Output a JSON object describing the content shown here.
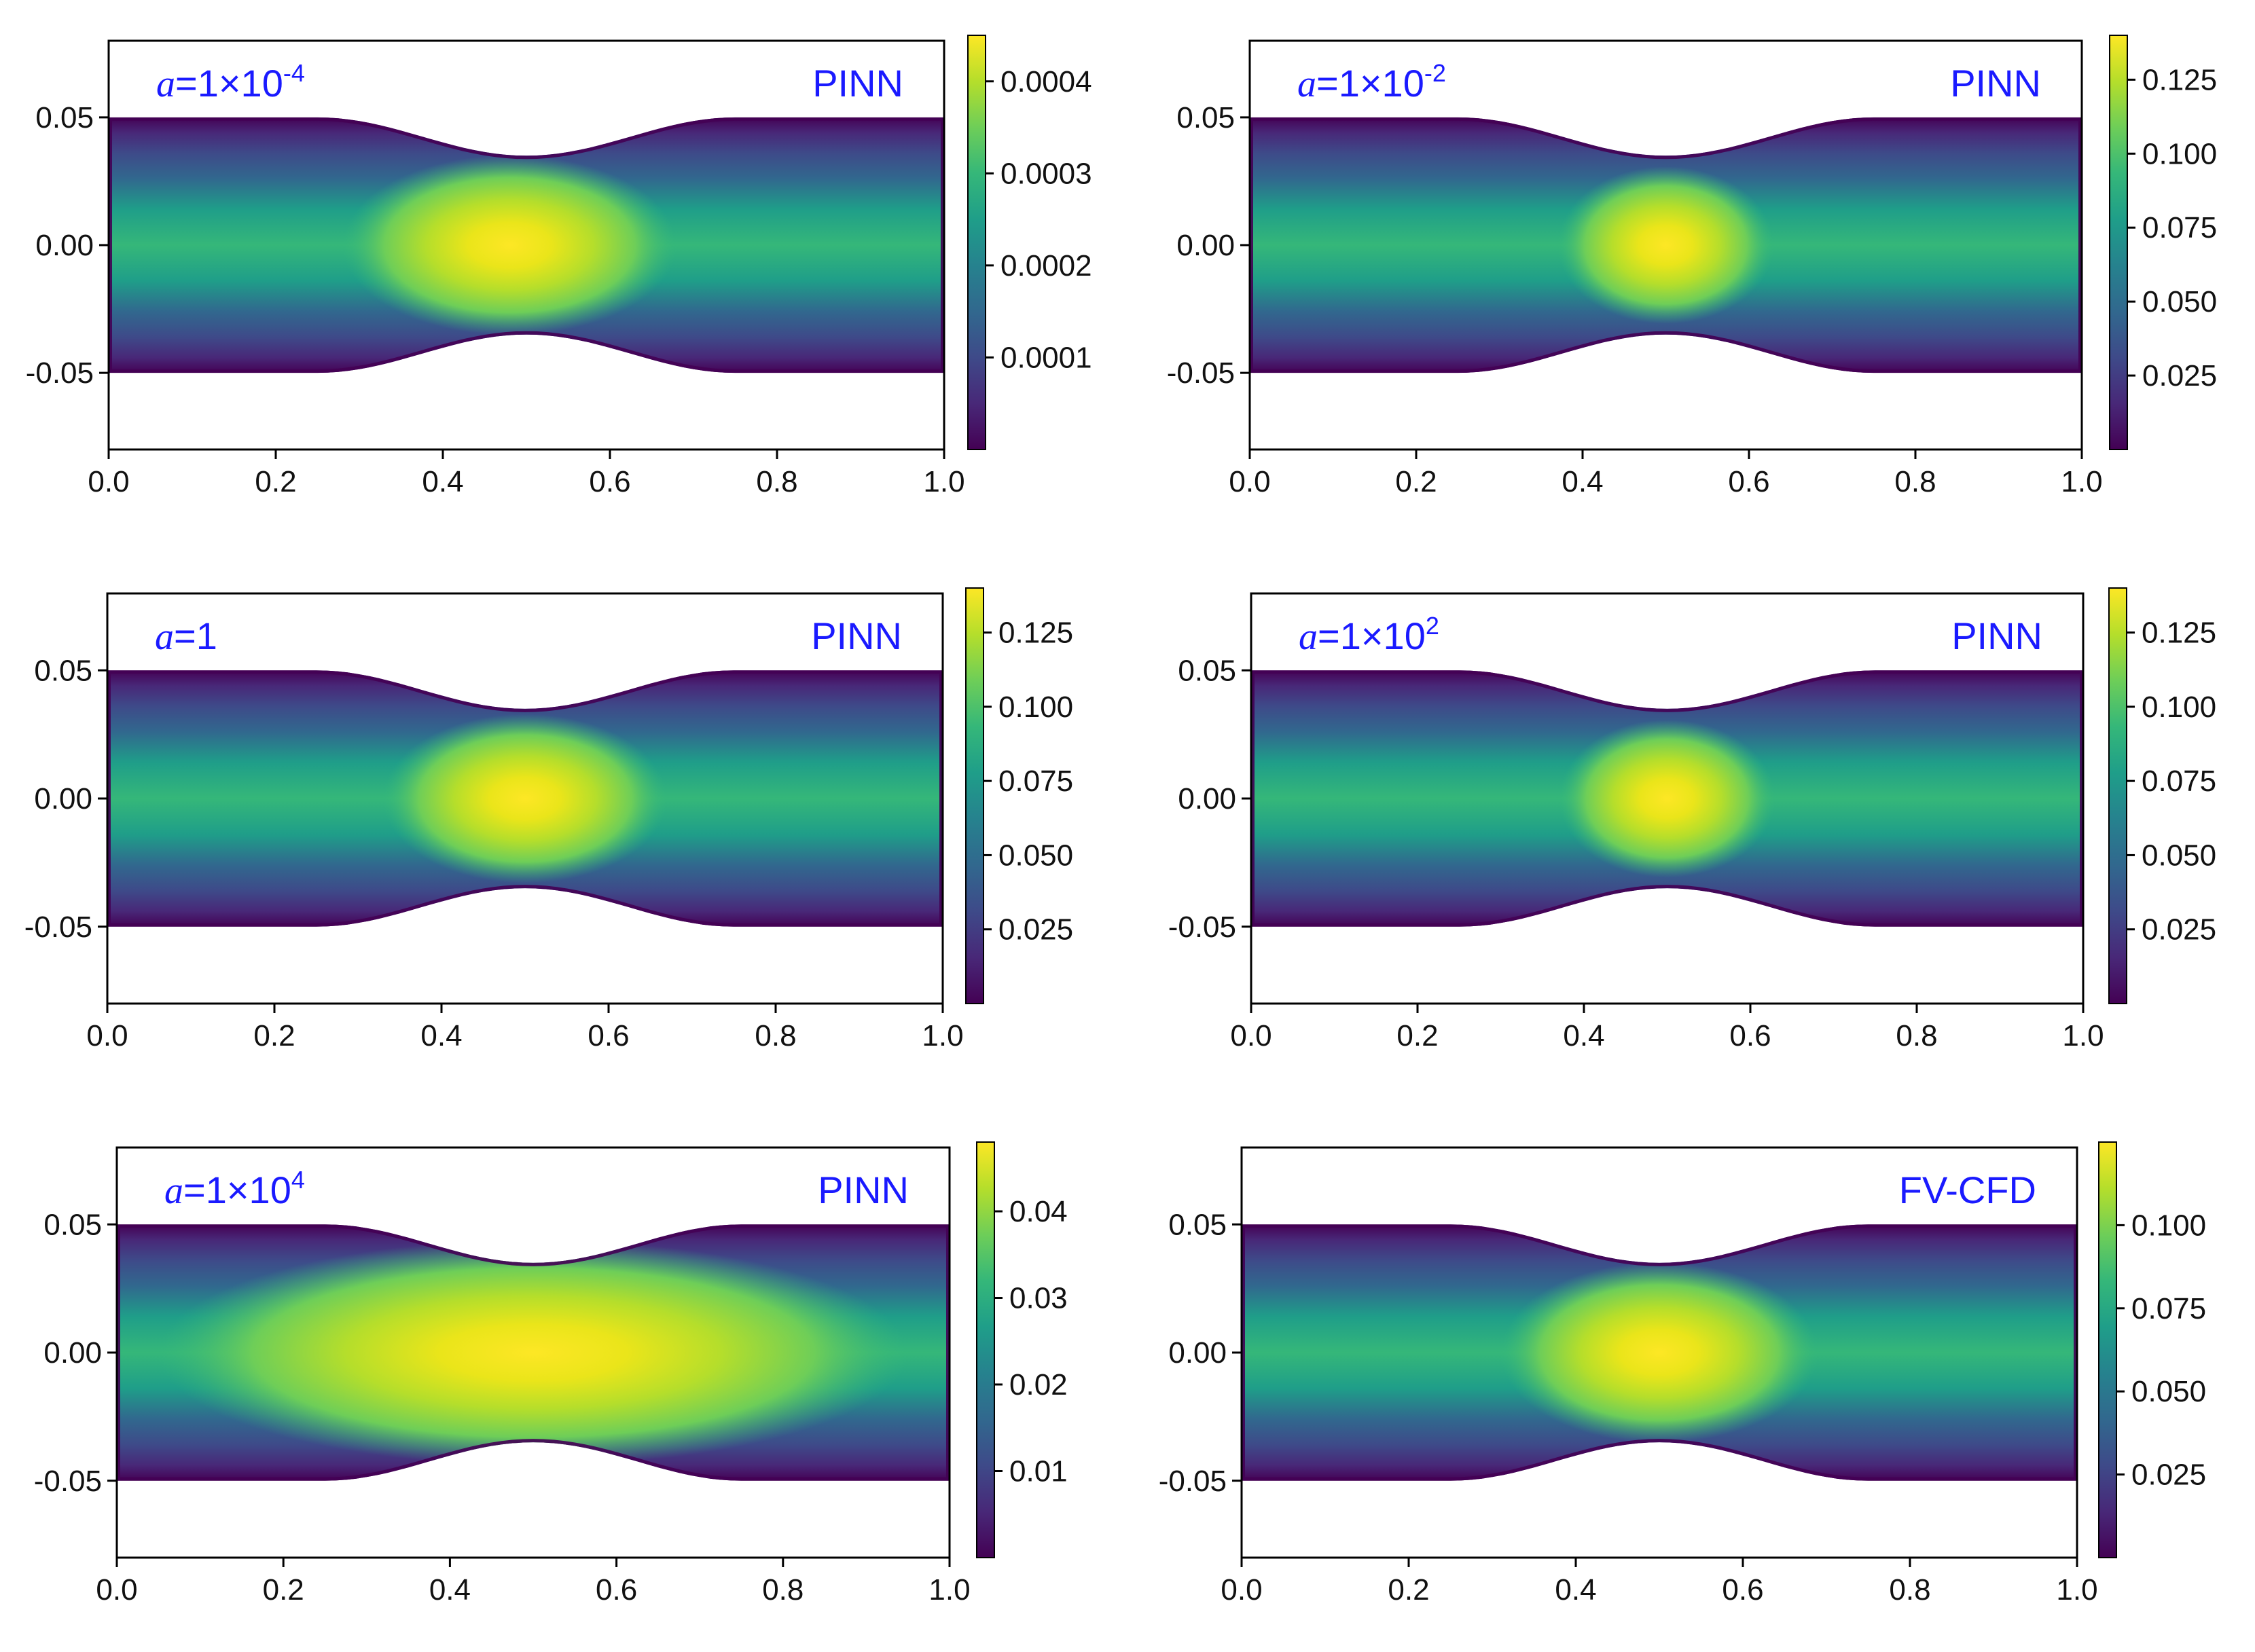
{
  "figure_title": "",
  "colormap": [
    "#440154",
    "#482878",
    "#3e4a89",
    "#31688e",
    "#26828e",
    "#1f9e89",
    "#35b779",
    "#6ece58",
    "#b5de2b",
    "#fde725"
  ],
  "frame_color": "#000000",
  "label_color": "#1a1aff",
  "chart_data": [
    {
      "type": "heatmap",
      "method": "PINN",
      "param_symbol": "a",
      "param_text": "=1×10",
      "param_exponent": "-4",
      "xlim": [
        0.0,
        1.0
      ],
      "ylim": [
        -0.08,
        0.08
      ],
      "xticks": [
        "0.0",
        "0.2",
        "0.4",
        "0.6",
        "0.8",
        "1.0"
      ],
      "yticks": [
        "0.05",
        "0.00",
        "-0.05"
      ],
      "yticks_values": [
        0.05,
        0.0,
        -0.05
      ],
      "colorbar_range": [
        0.0,
        0.00045
      ],
      "colorbar_ticks": [
        "0.0004",
        "0.0003",
        "0.0002",
        "0.0001"
      ],
      "colorbar_tick_values": [
        0.0004,
        0.0003,
        0.0002,
        0.0001
      ],
      "channel_half_width": 0.05,
      "throat_half_width": 0.035,
      "peak_center_x": 0.48,
      "peak_extent_x": 0.2,
      "peak_extent_y": 0.016
    },
    {
      "type": "heatmap",
      "method": "PINN",
      "param_symbol": "a",
      "param_text": "=1×10",
      "param_exponent": "-2",
      "xlim": [
        0.0,
        1.0
      ],
      "ylim": [
        -0.08,
        0.08
      ],
      "xticks": [
        "0.0",
        "0.2",
        "0.4",
        "0.6",
        "0.8",
        "1.0"
      ],
      "yticks": [
        "0.05",
        "0.00",
        "-0.05"
      ],
      "yticks_values": [
        0.05,
        0.0,
        -0.05
      ],
      "colorbar_range": [
        0.0,
        0.14
      ],
      "colorbar_ticks": [
        "0.125",
        "0.100",
        "0.075",
        "0.050",
        "0.025"
      ],
      "colorbar_tick_values": [
        0.125,
        0.1,
        0.075,
        0.05,
        0.025
      ],
      "channel_half_width": 0.05,
      "throat_half_width": 0.035,
      "peak_center_x": 0.5,
      "peak_extent_x": 0.13,
      "peak_extent_y": 0.014
    },
    {
      "type": "heatmap",
      "method": "PINN",
      "param_symbol": "a",
      "param_text": "=1",
      "param_exponent": "",
      "xlim": [
        0.0,
        1.0
      ],
      "ylim": [
        -0.08,
        0.08
      ],
      "xticks": [
        "0.0",
        "0.2",
        "0.4",
        "0.6",
        "0.8",
        "1.0"
      ],
      "yticks": [
        "0.05",
        "0.00",
        "-0.05"
      ],
      "yticks_values": [
        0.05,
        0.0,
        -0.05
      ],
      "colorbar_range": [
        0.0,
        0.14
      ],
      "colorbar_ticks": [
        "0.125",
        "0.100",
        "0.075",
        "0.050",
        "0.025"
      ],
      "colorbar_tick_values": [
        0.125,
        0.1,
        0.075,
        0.05,
        0.025
      ],
      "channel_half_width": 0.05,
      "throat_half_width": 0.035,
      "peak_center_x": 0.5,
      "peak_extent_x": 0.17,
      "peak_extent_y": 0.015
    },
    {
      "type": "heatmap",
      "method": "PINN",
      "param_symbol": "a",
      "param_text": "=1×10",
      "param_exponent": "2",
      "xlim": [
        0.0,
        1.0
      ],
      "ylim": [
        -0.08,
        0.08
      ],
      "xticks": [
        "0.0",
        "0.2",
        "0.4",
        "0.6",
        "0.8",
        "1.0"
      ],
      "yticks": [
        "0.05",
        "0.00",
        "-0.05"
      ],
      "yticks_values": [
        0.05,
        0.0,
        -0.05
      ],
      "colorbar_range": [
        0.0,
        0.14
      ],
      "colorbar_ticks": [
        "0.125",
        "0.100",
        "0.075",
        "0.050",
        "0.025"
      ],
      "colorbar_tick_values": [
        0.125,
        0.1,
        0.075,
        0.05,
        0.025
      ],
      "channel_half_width": 0.05,
      "throat_half_width": 0.035,
      "peak_center_x": 0.5,
      "peak_extent_x": 0.13,
      "peak_extent_y": 0.014
    },
    {
      "type": "heatmap",
      "method": "PINN",
      "param_symbol": "a",
      "param_text": "=1×10",
      "param_exponent": "4",
      "xlim": [
        0.0,
        1.0
      ],
      "ylim": [
        -0.08,
        0.08
      ],
      "xticks": [
        "0.0",
        "0.2",
        "0.4",
        "0.6",
        "0.8",
        "1.0"
      ],
      "yticks": [
        "0.05",
        "0.00",
        "-0.05"
      ],
      "yticks_values": [
        0.05,
        0.0,
        -0.05
      ],
      "colorbar_range": [
        0.0,
        0.048
      ],
      "colorbar_ticks": [
        "0.04",
        "0.03",
        "0.02",
        "0.01"
      ],
      "colorbar_tick_values": [
        0.04,
        0.03,
        0.02,
        0.01
      ],
      "channel_half_width": 0.05,
      "throat_half_width": 0.035,
      "peak_center_x": 0.5,
      "peak_extent_x": 0.45,
      "peak_extent_y": 0.02
    },
    {
      "type": "heatmap",
      "method": "FV-CFD",
      "param_symbol": "",
      "param_text": "",
      "param_exponent": "",
      "xlim": [
        0.0,
        1.0
      ],
      "ylim": [
        -0.08,
        0.08
      ],
      "xticks": [
        "0.0",
        "0.2",
        "0.4",
        "0.6",
        "0.8",
        "1.0"
      ],
      "yticks": [
        "0.05",
        "0.00",
        "-0.05"
      ],
      "yticks_values": [
        0.05,
        0.0,
        -0.05
      ],
      "colorbar_range": [
        0.0,
        0.125
      ],
      "colorbar_ticks": [
        "0.100",
        "0.075",
        "0.050",
        "0.025"
      ],
      "colorbar_tick_values": [
        0.1,
        0.075,
        0.05,
        0.025
      ],
      "channel_half_width": 0.05,
      "throat_half_width": 0.035,
      "peak_center_x": 0.5,
      "peak_extent_x": 0.19,
      "peak_extent_y": 0.016
    }
  ]
}
